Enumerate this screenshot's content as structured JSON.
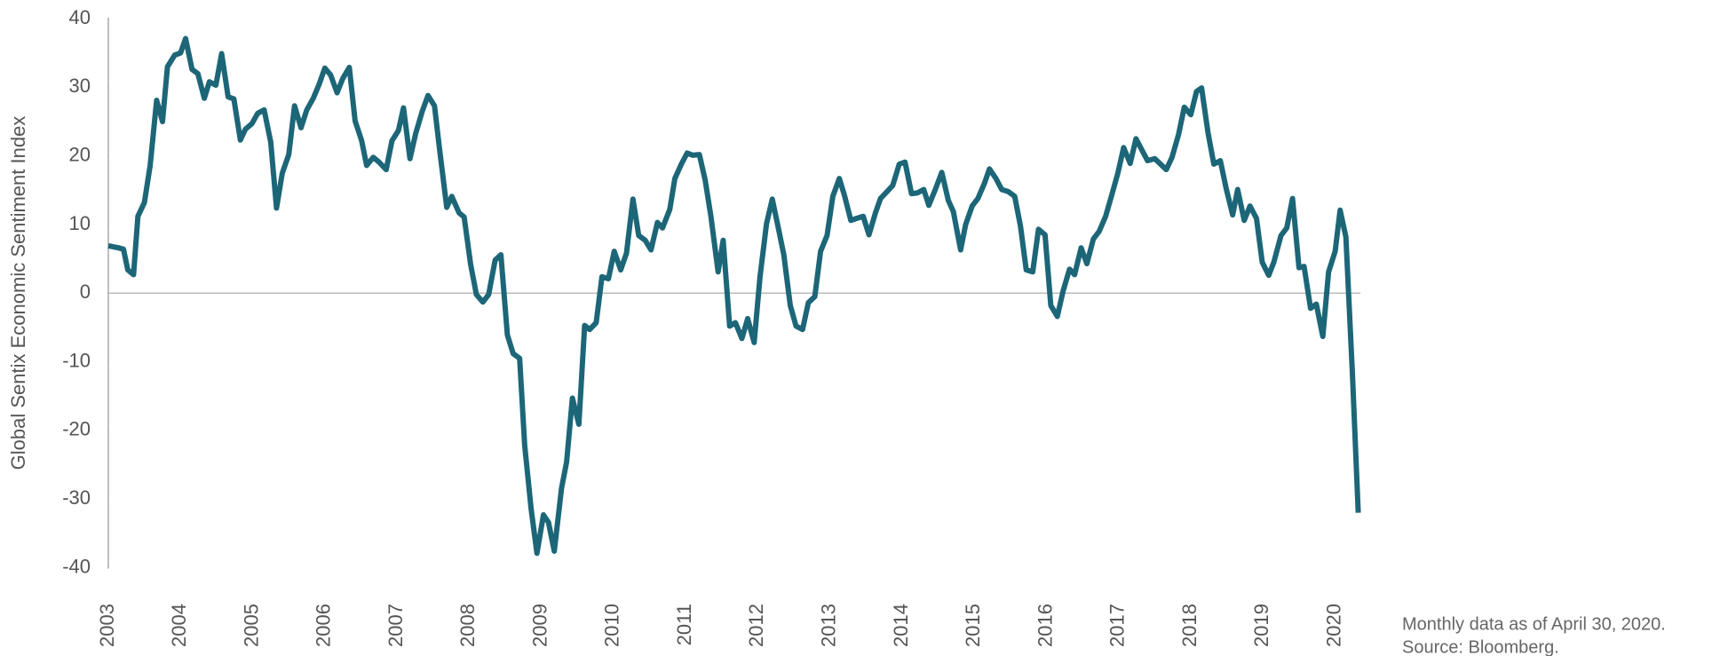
{
  "chart_data": {
    "type": "line",
    "y_label": "Global Sentix Economic Sentiment Index",
    "notes": [
      "Monthly data as of April 30, 2020.",
      "Source: Bloomberg."
    ],
    "xlim": [
      2003,
      2020.35
    ],
    "xticks": [
      2003,
      2004,
      2005,
      2006,
      2007,
      2008,
      2009,
      2010,
      2011,
      2012,
      2013,
      2014,
      2015,
      2016,
      2017,
      2018,
      2019,
      2020
    ],
    "ylim": [
      -40,
      40
    ],
    "yticks": [
      40,
      30,
      20,
      10,
      0,
      -10,
      -20,
      -30,
      -40
    ],
    "zero_line": true,
    "series": [
      {
        "color": "#1c6678",
        "x": [
          2003.0,
          2003.14,
          2003.21,
          2003.27,
          2003.35,
          2003.41,
          2003.5,
          2003.58,
          2003.67,
          2003.75,
          2003.82,
          2003.92,
          2004.0,
          2004.07,
          2004.16,
          2004.24,
          2004.33,
          2004.4,
          2004.49,
          2004.57,
          2004.66,
          2004.74,
          2004.83,
          2004.9,
          2004.99,
          2005.07,
          2005.16,
          2005.25,
          2005.33,
          2005.41,
          2005.5,
          2005.58,
          2005.67,
          2005.75,
          2005.84,
          2005.92,
          2006.0,
          2006.08,
          2006.17,
          2006.25,
          2006.34,
          2006.42,
          2006.51,
          2006.58,
          2006.67,
          2006.75,
          2006.85,
          2006.93,
          2007.02,
          2007.09,
          2007.18,
          2007.26,
          2007.35,
          2007.43,
          2007.52,
          2007.59,
          2007.69,
          2007.76,
          2007.86,
          2007.93,
          2008.02,
          2008.1,
          2008.19,
          2008.27,
          2008.36,
          2008.44,
          2008.53,
          2008.61,
          2008.7,
          2008.77,
          2008.86,
          2008.94,
          2009.03,
          2009.1,
          2009.18,
          2009.28,
          2009.35,
          2009.43,
          2009.52,
          2009.6,
          2009.67,
          2009.76,
          2009.84,
          2009.93,
          2010.01,
          2010.1,
          2010.18,
          2010.27,
          2010.35,
          2010.44,
          2010.52,
          2010.61,
          2010.68,
          2010.78,
          2010.85,
          2010.94,
          2011.02,
          2011.1,
          2011.19,
          2011.27,
          2011.35,
          2011.45,
          2011.52,
          2011.61,
          2011.69,
          2011.78,
          2011.86,
          2011.95,
          2012.03,
          2012.12,
          2012.2,
          2012.29,
          2012.36,
          2012.45,
          2012.53,
          2012.62,
          2012.7,
          2012.79,
          2012.87,
          2012.96,
          2013.04,
          2013.13,
          2013.2,
          2013.29,
          2013.37,
          2013.46,
          2013.54,
          2013.63,
          2013.7,
          2013.8,
          2013.87,
          2013.96,
          2014.04,
          2014.13,
          2014.21,
          2014.3,
          2014.37,
          2014.46,
          2014.55,
          2014.64,
          2014.71,
          2014.81,
          2014.88,
          2014.97,
          2015.05,
          2015.14,
          2015.21,
          2015.3,
          2015.38,
          2015.47,
          2015.56,
          2015.64,
          2015.72,
          2015.81,
          2015.89,
          2015.98,
          2016.06,
          2016.15,
          2016.23,
          2016.32,
          2016.39,
          2016.48,
          2016.56,
          2016.65,
          2016.73,
          2016.82,
          2016.9,
          2016.99,
          2017.07,
          2017.16,
          2017.24,
          2017.33,
          2017.4,
          2017.5,
          2017.57,
          2017.66,
          2017.74,
          2017.83,
          2017.91,
          2018.0,
          2018.08,
          2018.15,
          2018.24,
          2018.32,
          2018.41,
          2018.49,
          2018.58,
          2018.65,
          2018.74,
          2018.82,
          2018.91,
          2018.99,
          2019.08,
          2019.15,
          2019.25,
          2019.33,
          2019.41,
          2019.5,
          2019.57,
          2019.66,
          2019.74,
          2019.83,
          2019.91,
          2020.0,
          2020.07,
          2020.15,
          2020.24,
          2020.32
        ],
        "values": [
          6.9,
          6.6,
          6.4,
          3.4,
          2.7,
          11.2,
          13.2,
          18.6,
          28.1,
          25,
          33,
          34.7,
          35,
          37.1,
          32.6,
          32,
          28.4,
          30.8,
          30.3,
          34.9,
          28.6,
          28.3,
          22.3,
          23.9,
          24.7,
          26.2,
          26.7,
          22,
          12.4,
          17.5,
          20.2,
          27.3,
          24.1,
          26.7,
          28.4,
          30.4,
          32.8,
          31.8,
          29.2,
          31.3,
          32.9,
          25.1,
          22.2,
          18.6,
          19.8,
          19.1,
          18,
          22.2,
          23.7,
          27,
          19.6,
          23.3,
          26.5,
          28.8,
          27.3,
          21,
          12.5,
          14.1,
          11.7,
          11.1,
          4.2,
          -0.2,
          -1.3,
          -0.2,
          4.8,
          5.6,
          -6.1,
          -8.8,
          -9.5,
          -22.2,
          -31.5,
          -37.9,
          -32.3,
          -33.4,
          -37.6,
          -28.4,
          -24.6,
          -15.3,
          -19.1,
          -4.7,
          -5.3,
          -4.3,
          2.4,
          2.1,
          6.1,
          3.4,
          5.8,
          13.7,
          8.4,
          7.7,
          6.3,
          10.3,
          9.5,
          12.2,
          16.7,
          18.8,
          20.4,
          20.1,
          20.2,
          16.5,
          11.2,
          3.1,
          7.7,
          -4.8,
          -4.3,
          -6.6,
          -3.7,
          -7.2,
          2.4,
          10.1,
          13.7,
          9.2,
          5.6,
          -1.8,
          -4.8,
          -5.3,
          -1.4,
          -0.5,
          6.1,
          8.4,
          14.1,
          16.7,
          14.3,
          10.6,
          10.9,
          11.2,
          8.5,
          11.7,
          13.8,
          14.9,
          15.7,
          18.8,
          19.1,
          14.5,
          14.6,
          15.1,
          12.8,
          15.1,
          17.6,
          13.5,
          11.9,
          6.3,
          10,
          12.7,
          13.8,
          16,
          18.1,
          16.7,
          15.1,
          14.8,
          14.1,
          9.8,
          3.4,
          3.1,
          9.3,
          8.5,
          -1.8,
          -3.4,
          0.3,
          3.5,
          2.7,
          6.6,
          4.3,
          7.9,
          9,
          11.2,
          14.1,
          17.5,
          21.2,
          18.9,
          22.5,
          20.7,
          19.3,
          19.6,
          18.9,
          18,
          19.8,
          23.1,
          27.1,
          26,
          29.4,
          29.9,
          23.3,
          18.8,
          19.3,
          15.3,
          11.4,
          15.1,
          10.6,
          12.7,
          10.9,
          4.5,
          2.6,
          4.5,
          8.4,
          9.5,
          13.8,
          3.7,
          3.9,
          -2.2,
          -1.6,
          -6.3,
          3.1,
          6.1,
          12.1,
          8.2,
          -11.9,
          -32
        ]
      }
    ]
  }
}
